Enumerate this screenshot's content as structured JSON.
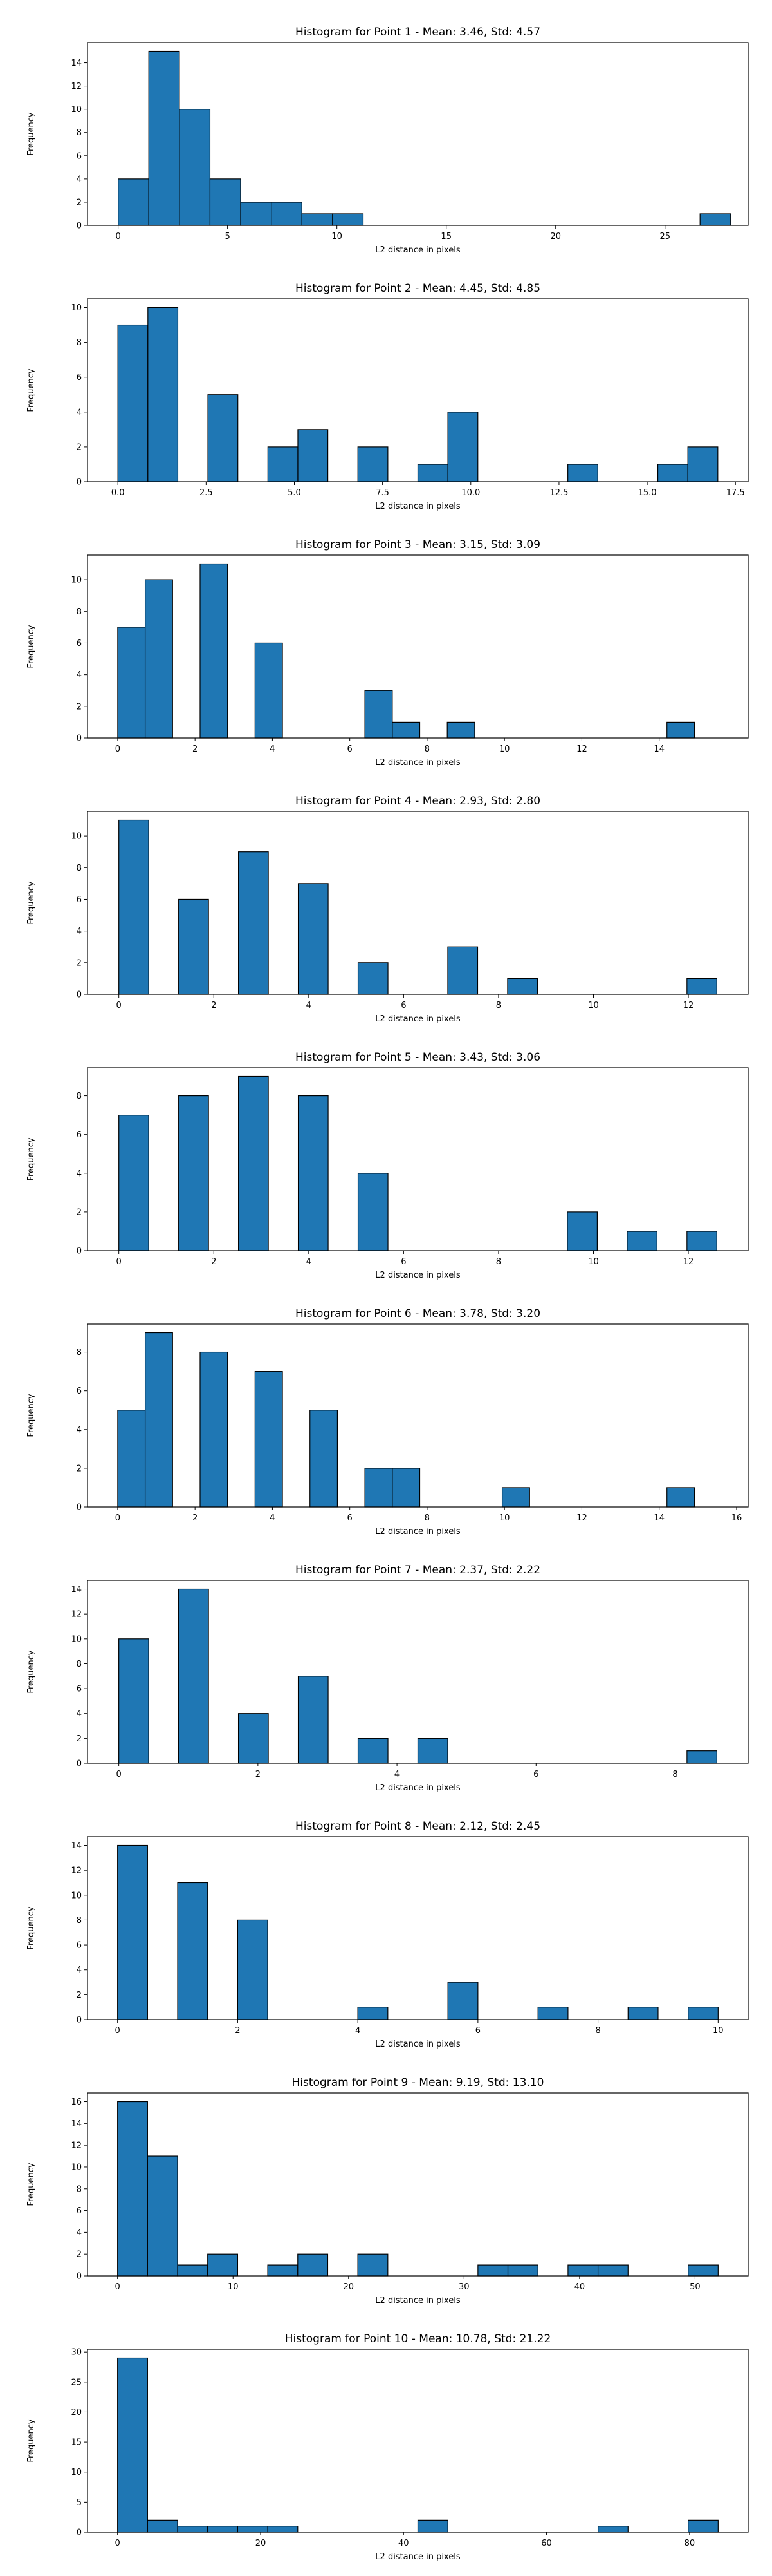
{
  "colors": {
    "bar_fill": "#1f77b4",
    "bar_edge": "#000000",
    "axis": "#000000",
    "background": "#ffffff"
  },
  "chart_data": [
    {
      "type": "bar",
      "title": "Histogram for Point 1 - Mean: 3.46, Std: 4.57",
      "xlabel": "L2 distance in pixels",
      "ylabel": "Frequency",
      "xlim": [
        -1.4,
        28.8
      ],
      "ylim": [
        0,
        15.75
      ],
      "xticks": [
        0,
        5,
        10,
        15,
        20,
        25
      ],
      "xtick_labels": [
        "0",
        "5",
        "10",
        "15",
        "20",
        "25"
      ],
      "yticks": [
        0,
        2,
        4,
        6,
        8,
        10,
        12,
        14
      ],
      "grid": false,
      "bins": [
        {
          "x0": 0,
          "x1": 1.4,
          "count": 4
        },
        {
          "x0": 1.4,
          "x1": 2.8,
          "count": 15
        },
        {
          "x0": 2.8,
          "x1": 4.2,
          "count": 10
        },
        {
          "x0": 4.2,
          "x1": 5.6,
          "count": 4
        },
        {
          "x0": 5.6,
          "x1": 7.0,
          "count": 2
        },
        {
          "x0": 7.0,
          "x1": 8.4,
          "count": 2
        },
        {
          "x0": 8.4,
          "x1": 9.8,
          "count": 1
        },
        {
          "x0": 9.8,
          "x1": 11.2,
          "count": 1
        },
        {
          "x0": 26.6,
          "x1": 28.0,
          "count": 1
        }
      ]
    },
    {
      "type": "bar",
      "title": "Histogram for Point 2 - Mean: 4.45, Std: 4.85",
      "xlabel": "L2 distance in pixels",
      "ylabel": "Frequency",
      "xlim": [
        -0.86,
        17.86
      ],
      "ylim": [
        0,
        10.5
      ],
      "xticks": [
        0,
        2.5,
        5,
        7.5,
        10,
        12.5,
        15,
        17.5
      ],
      "xtick_labels": [
        "0.0",
        "2.5",
        "5.0",
        "7.5",
        "10.0",
        "12.5",
        "15.0",
        "17.5"
      ],
      "yticks": [
        0,
        2,
        4,
        6,
        8,
        10
      ],
      "grid": false,
      "bins": [
        {
          "x0": 0,
          "x1": 0.85,
          "count": 9
        },
        {
          "x0": 0.85,
          "x1": 1.7,
          "count": 10
        },
        {
          "x0": 2.55,
          "x1": 3.4,
          "count": 5
        },
        {
          "x0": 4.25,
          "x1": 5.1,
          "count": 2
        },
        {
          "x0": 5.1,
          "x1": 5.95,
          "count": 3
        },
        {
          "x0": 6.8,
          "x1": 7.65,
          "count": 2
        },
        {
          "x0": 8.5,
          "x1": 9.35,
          "count": 1
        },
        {
          "x0": 9.35,
          "x1": 10.2,
          "count": 4
        },
        {
          "x0": 12.75,
          "x1": 13.6,
          "count": 1
        },
        {
          "x0": 15.3,
          "x1": 16.15,
          "count": 1
        },
        {
          "x0": 16.15,
          "x1": 17.0,
          "count": 2
        }
      ]
    },
    {
      "type": "bar",
      "title": "Histogram for Point 3 - Mean: 3.15, Std: 3.09",
      "xlabel": "L2 distance in pixels",
      "ylabel": "Frequency",
      "xlim": [
        -0.78,
        16.3
      ],
      "ylim": [
        0,
        11.55
      ],
      "xticks": [
        0,
        2,
        4,
        6,
        8,
        10,
        12,
        14
      ],
      "xtick_labels": [
        "0",
        "2",
        "4",
        "6",
        "8",
        "10",
        "12",
        "14"
      ],
      "yticks": [
        0,
        2,
        4,
        6,
        8,
        10
      ],
      "grid": false,
      "bins": [
        {
          "x0": 0,
          "x1": 0.71,
          "count": 7
        },
        {
          "x0": 0.71,
          "x1": 1.42,
          "count": 10
        },
        {
          "x0": 2.13,
          "x1": 2.84,
          "count": 11
        },
        {
          "x0": 3.55,
          "x1": 4.26,
          "count": 6
        },
        {
          "x0": 6.39,
          "x1": 7.1,
          "count": 3
        },
        {
          "x0": 7.1,
          "x1": 7.81,
          "count": 1
        },
        {
          "x0": 8.52,
          "x1": 9.23,
          "count": 1
        },
        {
          "x0": 14.2,
          "x1": 14.91,
          "count": 1
        }
      ]
    },
    {
      "type": "bar",
      "title": "Histogram for Point 4 - Mean: 2.93, Std: 2.80",
      "xlabel": "L2 distance in pixels",
      "ylabel": "Frequency",
      "xlim": [
        -0.66,
        13.26
      ],
      "ylim": [
        0,
        11.55
      ],
      "xticks": [
        0,
        2,
        4,
        6,
        8,
        10,
        12
      ],
      "xtick_labels": [
        "0",
        "2",
        "4",
        "6",
        "8",
        "10",
        "12"
      ],
      "yticks": [
        0,
        2,
        4,
        6,
        8,
        10
      ],
      "grid": false,
      "bins": [
        {
          "x0": 0,
          "x1": 0.63,
          "count": 11
        },
        {
          "x0": 1.26,
          "x1": 1.89,
          "count": 6
        },
        {
          "x0": 2.52,
          "x1": 3.15,
          "count": 9
        },
        {
          "x0": 3.78,
          "x1": 4.41,
          "count": 7
        },
        {
          "x0": 5.04,
          "x1": 5.67,
          "count": 2
        },
        {
          "x0": 6.93,
          "x1": 7.56,
          "count": 3
        },
        {
          "x0": 8.19,
          "x1": 8.82,
          "count": 1
        },
        {
          "x0": 11.97,
          "x1": 12.6,
          "count": 1
        }
      ]
    },
    {
      "type": "bar",
      "title": "Histogram for Point 5 - Mean: 3.43, Std: 3.06",
      "xlabel": "L2 distance in pixels",
      "ylabel": "Frequency",
      "xlim": [
        -0.66,
        13.26
      ],
      "ylim": [
        0,
        9.45
      ],
      "xticks": [
        0,
        2,
        4,
        6,
        8,
        10,
        12
      ],
      "xtick_labels": [
        "0",
        "2",
        "4",
        "6",
        "8",
        "10",
        "12"
      ],
      "yticks": [
        0,
        2,
        4,
        6,
        8
      ],
      "grid": false,
      "bins": [
        {
          "x0": 0,
          "x1": 0.63,
          "count": 7
        },
        {
          "x0": 1.26,
          "x1": 1.89,
          "count": 8
        },
        {
          "x0": 2.52,
          "x1": 3.15,
          "count": 9
        },
        {
          "x0": 3.78,
          "x1": 4.41,
          "count": 8
        },
        {
          "x0": 5.04,
          "x1": 5.67,
          "count": 4
        },
        {
          "x0": 9.45,
          "x1": 10.08,
          "count": 2
        },
        {
          "x0": 10.71,
          "x1": 11.34,
          "count": 1
        },
        {
          "x0": 11.97,
          "x1": 12.6,
          "count": 1
        }
      ]
    },
    {
      "type": "bar",
      "title": "Histogram for Point 6 - Mean: 3.78, Std: 3.20",
      "xlabel": "L2 distance in pixels",
      "ylabel": "Frequency",
      "xlim": [
        -0.78,
        16.3
      ],
      "ylim": [
        0,
        9.45
      ],
      "xticks": [
        0,
        2,
        4,
        6,
        8,
        10,
        12,
        14,
        16
      ],
      "xtick_labels": [
        "0",
        "2",
        "4",
        "6",
        "8",
        "10",
        "12",
        "14",
        "16"
      ],
      "yticks": [
        0,
        2,
        4,
        6,
        8
      ],
      "grid": false,
      "bins": [
        {
          "x0": 0,
          "x1": 0.71,
          "count": 5
        },
        {
          "x0": 0.71,
          "x1": 1.42,
          "count": 9
        },
        {
          "x0": 2.13,
          "x1": 2.84,
          "count": 8
        },
        {
          "x0": 3.55,
          "x1": 4.26,
          "count": 7
        },
        {
          "x0": 4.97,
          "x1": 5.68,
          "count": 5
        },
        {
          "x0": 6.39,
          "x1": 7.1,
          "count": 2
        },
        {
          "x0": 7.1,
          "x1": 7.81,
          "count": 2
        },
        {
          "x0": 9.94,
          "x1": 10.65,
          "count": 1
        },
        {
          "x0": 14.2,
          "x1": 14.91,
          "count": 1
        }
      ]
    },
    {
      "type": "bar",
      "title": "Histogram for Point 7 - Mean: 2.37, Std: 2.22",
      "xlabel": "L2 distance in pixels",
      "ylabel": "Frequency",
      "xlim": [
        -0.45,
        9.05
      ],
      "ylim": [
        0,
        14.7
      ],
      "xticks": [
        0,
        2,
        4,
        6,
        8
      ],
      "xtick_labels": [
        "0",
        "2",
        "4",
        "6",
        "8"
      ],
      "yticks": [
        0,
        2,
        4,
        6,
        8,
        10,
        12,
        14
      ],
      "grid": false,
      "bins": [
        {
          "x0": 0,
          "x1": 0.43,
          "count": 10
        },
        {
          "x0": 0.86,
          "x1": 1.29,
          "count": 14
        },
        {
          "x0": 1.72,
          "x1": 2.15,
          "count": 4
        },
        {
          "x0": 2.58,
          "x1": 3.01,
          "count": 7
        },
        {
          "x0": 3.44,
          "x1": 3.87,
          "count": 2
        },
        {
          "x0": 4.3,
          "x1": 4.73,
          "count": 2
        },
        {
          "x0": 8.17,
          "x1": 8.6,
          "count": 1
        }
      ]
    },
    {
      "type": "bar",
      "title": "Histogram for Point 8 - Mean: 2.12, Std: 2.45",
      "xlabel": "L2 distance in pixels",
      "ylabel": "Frequency",
      "xlim": [
        -0.5,
        10.5
      ],
      "ylim": [
        0,
        14.7
      ],
      "xticks": [
        0,
        2,
        4,
        6,
        8,
        10
      ],
      "xtick_labels": [
        "0",
        "2",
        "4",
        "6",
        "8",
        "10"
      ],
      "yticks": [
        0,
        2,
        4,
        6,
        8,
        10,
        12,
        14
      ],
      "grid": false,
      "bins": [
        {
          "x0": 0,
          "x1": 0.5,
          "count": 14
        },
        {
          "x0": 1.0,
          "x1": 1.5,
          "count": 11
        },
        {
          "x0": 2.0,
          "x1": 2.5,
          "count": 8
        },
        {
          "x0": 4.0,
          "x1": 4.5,
          "count": 1
        },
        {
          "x0": 5.5,
          "x1": 6.0,
          "count": 3
        },
        {
          "x0": 7.0,
          "x1": 7.5,
          "count": 1
        },
        {
          "x0": 8.5,
          "x1": 9.0,
          "count": 1
        },
        {
          "x0": 9.5,
          "x1": 10.0,
          "count": 1
        }
      ]
    },
    {
      "type": "bar",
      "title": "Histogram for Point 9 - Mean: 9.19, Std: 13.10",
      "xlabel": "L2 distance in pixels",
      "ylabel": "Frequency",
      "xlim": [
        -2.6,
        54.6
      ],
      "ylim": [
        0,
        16.8
      ],
      "xticks": [
        0,
        10,
        20,
        30,
        40,
        50
      ],
      "xtick_labels": [
        "0",
        "10",
        "20",
        "30",
        "40",
        "50"
      ],
      "yticks": [
        0,
        2,
        4,
        6,
        8,
        10,
        12,
        14,
        16
      ],
      "grid": false,
      "bins": [
        {
          "x0": 0,
          "x1": 2.6,
          "count": 16
        },
        {
          "x0": 2.6,
          "x1": 5.2,
          "count": 11
        },
        {
          "x0": 5.2,
          "x1": 7.8,
          "count": 1
        },
        {
          "x0": 7.8,
          "x1": 10.4,
          "count": 2
        },
        {
          "x0": 13.0,
          "x1": 15.6,
          "count": 1
        },
        {
          "x0": 15.6,
          "x1": 18.2,
          "count": 2
        },
        {
          "x0": 20.8,
          "x1": 23.4,
          "count": 2
        },
        {
          "x0": 31.2,
          "x1": 33.8,
          "count": 1
        },
        {
          "x0": 33.8,
          "x1": 36.4,
          "count": 1
        },
        {
          "x0": 39.0,
          "x1": 41.6,
          "count": 1
        },
        {
          "x0": 41.6,
          "x1": 44.2,
          "count": 1
        },
        {
          "x0": 49.4,
          "x1": 52.0,
          "count": 1
        }
      ]
    },
    {
      "type": "bar",
      "title": "Histogram for Point 10 - Mean: 10.78, Std: 21.22",
      "xlabel": "L2 distance in pixels",
      "ylabel": "Frequency",
      "xlim": [
        -4.2,
        88.2
      ],
      "ylim": [
        0,
        30.45
      ],
      "xticks": [
        0,
        20,
        40,
        60,
        80
      ],
      "xtick_labels": [
        "0",
        "20",
        "40",
        "60",
        "80"
      ],
      "yticks": [
        0,
        5,
        10,
        15,
        20,
        25,
        30
      ],
      "grid": false,
      "bins": [
        {
          "x0": 0,
          "x1": 4.2,
          "count": 29
        },
        {
          "x0": 4.2,
          "x1": 8.4,
          "count": 2
        },
        {
          "x0": 8.4,
          "x1": 12.6,
          "count": 1
        },
        {
          "x0": 12.6,
          "x1": 16.8,
          "count": 1
        },
        {
          "x0": 16.8,
          "x1": 21.0,
          "count": 1
        },
        {
          "x0": 21.0,
          "x1": 25.2,
          "count": 1
        },
        {
          "x0": 42.0,
          "x1": 46.2,
          "count": 2
        },
        {
          "x0": 67.2,
          "x1": 71.4,
          "count": 1
        },
        {
          "x0": 79.8,
          "x1": 84.0,
          "count": 2
        }
      ]
    }
  ]
}
